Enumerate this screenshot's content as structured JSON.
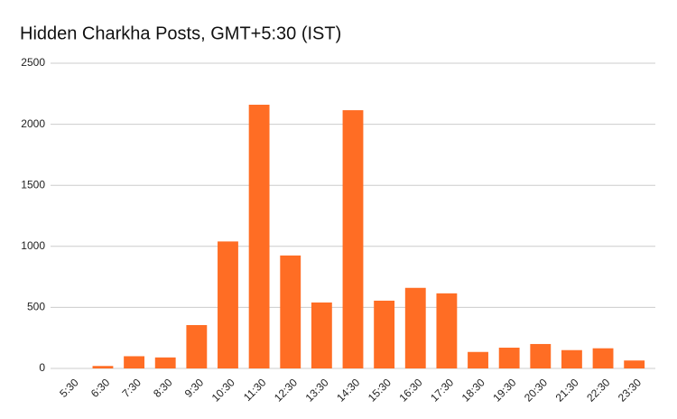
{
  "chart_data": {
    "type": "bar",
    "title": "Hidden Charkha Posts, GMT+5:30 (IST)",
    "categories": [
      "5:30",
      "6:30",
      "7:30",
      "8:30",
      "9:30",
      "10:30",
      "11:30",
      "12:30",
      "13:30",
      "14:30",
      "15:30",
      "16:30",
      "17:30",
      "18:30",
      "19:30",
      "20:30",
      "21:30",
      "22:30",
      "23:30"
    ],
    "values": [
      0,
      20,
      100,
      90,
      355,
      1040,
      2160,
      925,
      540,
      2115,
      555,
      660,
      615,
      135,
      170,
      200,
      150,
      165,
      65
    ],
    "color": "#ff6d24",
    "ylim": [
      0,
      2500
    ],
    "yticks": [
      0,
      500,
      1000,
      1500,
      2000,
      2500
    ],
    "grid": true
  }
}
